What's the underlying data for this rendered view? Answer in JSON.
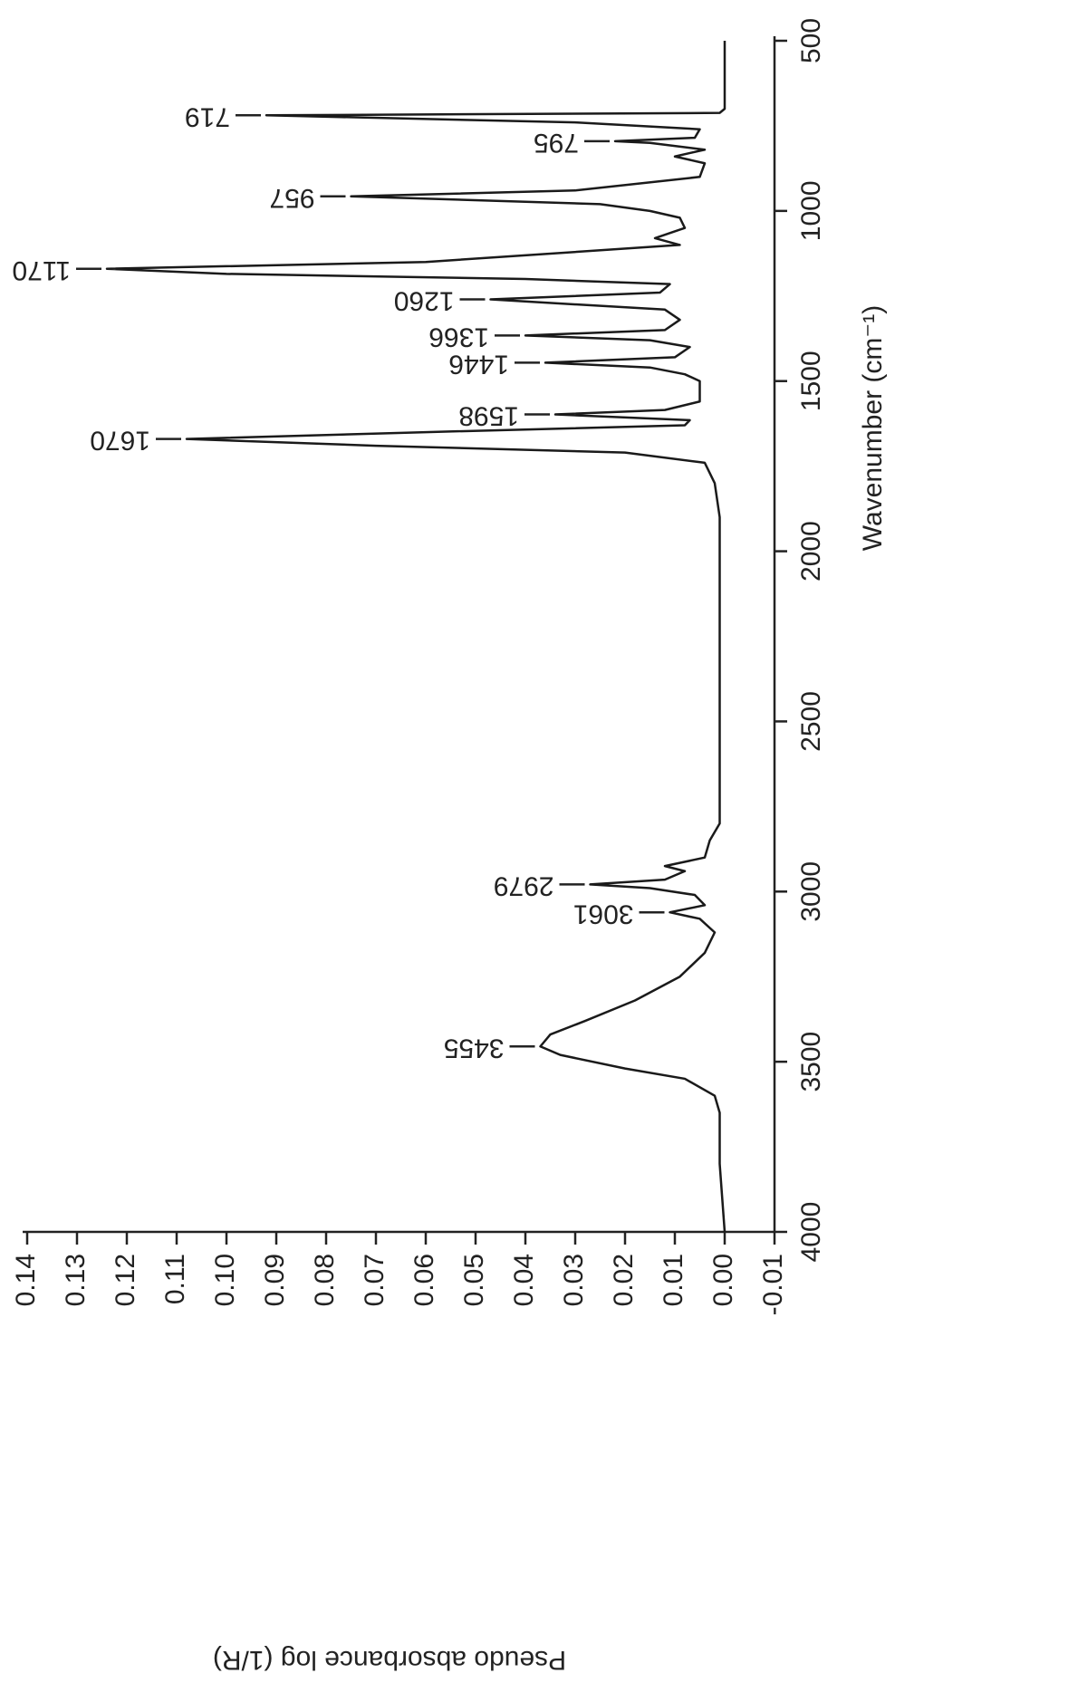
{
  "chart_data": {
    "type": "line",
    "x_label": "Wavenumber (cm⁻¹)",
    "y_label": "Pseudo absorbance log (1/R)",
    "x": [
      4000,
      3800,
      3650,
      3600,
      3550,
      3520,
      3480,
      3455,
      3420,
      3380,
      3320,
      3250,
      3180,
      3120,
      3080,
      3061,
      3040,
      3010,
      2990,
      2979,
      2965,
      2940,
      2925,
      2900,
      2850,
      2800,
      2500,
      2000,
      1900,
      1800,
      1740,
      1710,
      1690,
      1670,
      1650,
      1630,
      1615,
      1598,
      1585,
      1560,
      1500,
      1480,
      1460,
      1446,
      1430,
      1400,
      1380,
      1366,
      1350,
      1320,
      1290,
      1260,
      1240,
      1215,
      1200,
      1185,
      1170,
      1150,
      1100,
      1080,
      1050,
      1020,
      1000,
      980,
      957,
      940,
      900,
      860,
      840,
      820,
      800,
      795,
      785,
      760,
      740,
      719,
      712,
      700,
      500
    ],
    "values": [
      0,
      0.001,
      0.001,
      0.002,
      0.008,
      0.02,
      0.033,
      0.037,
      0.035,
      0.028,
      0.018,
      0.009,
      0.004,
      0.002,
      0.005,
      0.011,
      0.004,
      0.006,
      0.015,
      0.027,
      0.012,
      0.008,
      0.012,
      0.004,
      0.003,
      0.001,
      0.001,
      0.001,
      0.001,
      0.002,
      0.004,
      0.02,
      0.07,
      0.108,
      0.06,
      0.008,
      0.007,
      0.034,
      0.012,
      0.005,
      0.005,
      0.008,
      0.015,
      0.036,
      0.01,
      0.007,
      0.015,
      0.04,
      0.012,
      0.009,
      0.012,
      0.047,
      0.013,
      0.011,
      0.04,
      0.1,
      0.124,
      0.06,
      0.009,
      0.014,
      0.008,
      0.009,
      0.015,
      0.025,
      0.075,
      0.03,
      0.005,
      0.004,
      0.01,
      0.004,
      0.015,
      0.022,
      0.006,
      0.005,
      0.03,
      0.092,
      0.001,
      0,
      0
    ],
    "color": "#1a1a1a",
    "xlim": [
      4000,
      500
    ],
    "ylim": [
      -0.01,
      0.14
    ],
    "xticks": [
      4000,
      3500,
      3000,
      2500,
      2000,
      1500,
      1000,
      500
    ],
    "yticks": [
      {
        "value": -0.01,
        "label": "-0.01"
      },
      {
        "value": 0,
        "label": "0.00"
      },
      {
        "value": 0.01,
        "label": "0.01"
      },
      {
        "value": 0.02,
        "label": "0.02"
      },
      {
        "value": 0.03,
        "label": "0.03"
      },
      {
        "value": 0.04,
        "label": "0.04"
      },
      {
        "value": 0.05,
        "label": "0.05"
      },
      {
        "value": 0.06,
        "label": "0.06"
      },
      {
        "value": 0.07,
        "label": "0.07"
      },
      {
        "value": 0.08,
        "label": "0.08"
      },
      {
        "value": 0.09,
        "label": "0.09"
      },
      {
        "value": 0.1,
        "label": "0.10"
      },
      {
        "value": 0.11,
        "label": "0.11"
      },
      {
        "value": 0.12,
        "label": "0.12"
      },
      {
        "value": 0.13,
        "label": "0.13"
      },
      {
        "value": 0.14,
        "label": "0.14"
      }
    ],
    "annotations": [
      {
        "text": "3455",
        "x": 3455,
        "y": 0.037
      },
      {
        "text": "3061",
        "x": 3061,
        "y": 0.011
      },
      {
        "text": "2979",
        "x": 2979,
        "y": 0.027
      },
      {
        "text": "1670",
        "x": 1670,
        "y": 0.108
      },
      {
        "text": "1598",
        "x": 1598,
        "y": 0.034
      },
      {
        "text": "1446",
        "x": 1446,
        "y": 0.036
      },
      {
        "text": "1366",
        "x": 1366,
        "y": 0.04
      },
      {
        "text": "1260",
        "x": 1260,
        "y": 0.047
      },
      {
        "text": "1170",
        "x": 1170,
        "y": 0.124
      },
      {
        "text": "957",
        "x": 957,
        "y": 0.075
      },
      {
        "text": "795",
        "x": 795,
        "y": 0.022
      },
      {
        "text": "719",
        "x": 719,
        "y": 0.092
      }
    ]
  }
}
